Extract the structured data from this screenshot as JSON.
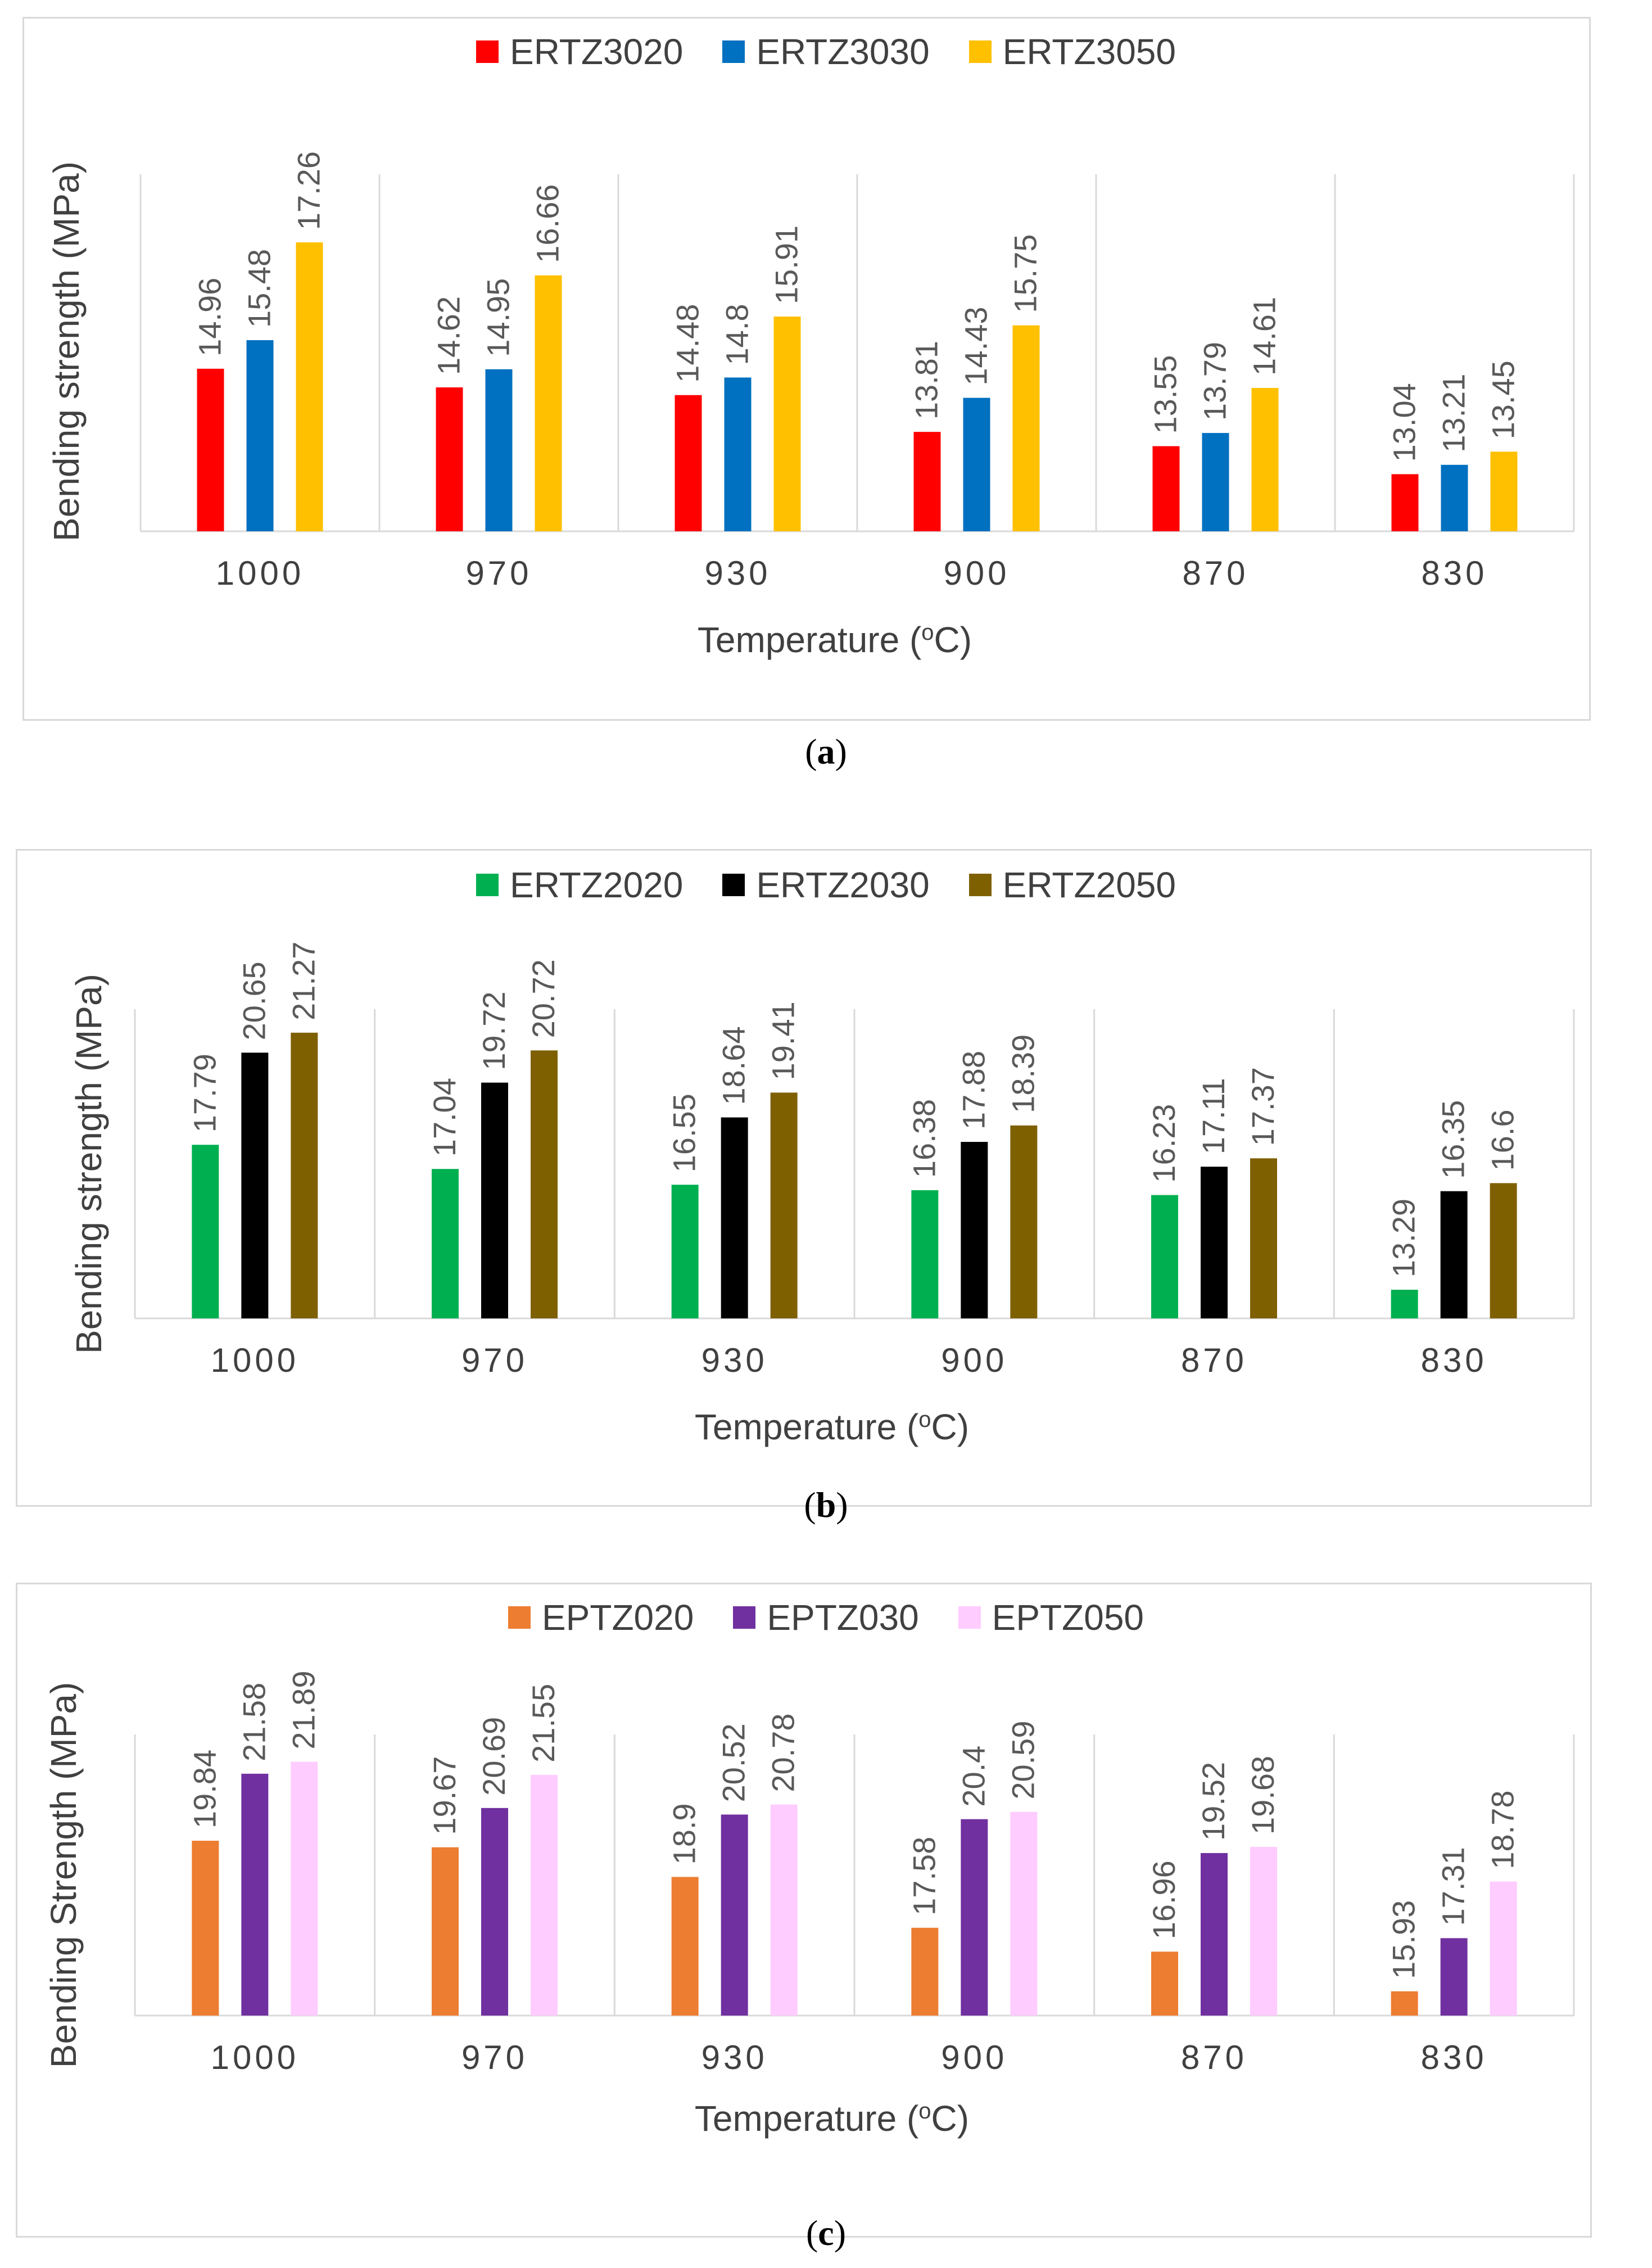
{
  "chart_data": [
    {
      "type": "bar",
      "panel_label": "a",
      "title": "",
      "xlabel": "Temperature (°C)",
      "xlabel_main": "Temperature (",
      "xlabel_sup": "o",
      "xlabel_end": "C)",
      "ylabel": "Bending strength (MPa)",
      "categories": [
        "1000",
        "970",
        "930",
        "900",
        "870",
        "830"
      ],
      "ylim": [
        12,
        18.5
      ],
      "series": [
        {
          "name": "ERTZ3020",
          "color": "#ff0000",
          "values": [
            14.96,
            14.62,
            14.48,
            13.81,
            13.55,
            13.04
          ],
          "labels": [
            "14.96",
            "14.62",
            "14.48",
            "13.81",
            "13.55",
            "13.04"
          ]
        },
        {
          "name": "ERTZ3030",
          "color": "#0070c0",
          "values": [
            15.48,
            14.95,
            14.8,
            14.43,
            13.79,
            13.21
          ],
          "labels": [
            "15.48",
            "14.95",
            "14.8",
            "14.43",
            "13.79",
            "13.21"
          ]
        },
        {
          "name": "ERTZ3050",
          "color": "#ffc000",
          "values": [
            17.26,
            16.66,
            15.91,
            15.75,
            14.61,
            13.45
          ],
          "labels": [
            "17.26",
            "16.66",
            "15.91",
            "15.75",
            "14.61",
            "13.45"
          ]
        }
      ]
    },
    {
      "type": "bar",
      "panel_label": "b",
      "title": "",
      "xlabel": "Temperature (°C)",
      "xlabel_main": "Temperature (",
      "xlabel_sup": "o",
      "xlabel_end": "C)",
      "ylabel": "Bending strength (MPa)",
      "categories": [
        "1000",
        "970",
        "930",
        "900",
        "870",
        "830"
      ],
      "ylim": [
        12.4,
        22.0
      ],
      "series": [
        {
          "name": "ERTZ2020",
          "color": "#00b050",
          "values": [
            17.79,
            17.04,
            16.55,
            16.38,
            16.23,
            13.29
          ],
          "labels": [
            "17.79",
            "17.04",
            "16.55",
            "16.38",
            "16.23",
            "13.29"
          ]
        },
        {
          "name": "ERTZ2030",
          "color": "#000000",
          "values": [
            20.65,
            19.72,
            18.64,
            17.88,
            17.11,
            16.35
          ],
          "labels": [
            "20.65",
            "19.72",
            "18.64",
            "17.88",
            "17.11",
            "16.35"
          ]
        },
        {
          "name": "ERTZ2050",
          "color": "#7f6000",
          "values": [
            21.27,
            20.72,
            19.41,
            18.39,
            17.37,
            16.6
          ],
          "labels": [
            "21.27",
            "20.72",
            "19.41",
            "18.39",
            "17.37",
            "16.6"
          ]
        }
      ]
    },
    {
      "type": "bar",
      "panel_label": "c",
      "title": "",
      "xlabel": "Temperature (°C)",
      "xlabel_main": "Temperature (",
      "xlabel_sup": "o",
      "xlabel_end": "C)",
      "ylabel": "Bending Strength (MPa)",
      "categories": [
        "1000",
        "970",
        "930",
        "900",
        "870",
        "830"
      ],
      "ylim": [
        15.3,
        22.6
      ],
      "series": [
        {
          "name": "EPTZ020",
          "color": "#ed7d31",
          "values": [
            19.84,
            19.67,
            18.9,
            17.58,
            16.96,
            15.93
          ],
          "labels": [
            "19.84",
            "19.67",
            "18.9",
            "17.58",
            "16.96",
            "15.93"
          ]
        },
        {
          "name": "EPTZ030",
          "color": "#7030a0",
          "values": [
            21.58,
            20.69,
            20.52,
            20.4,
            19.52,
            17.31
          ],
          "labels": [
            "21.58",
            "20.69",
            "20.52",
            "20.4",
            "19.52",
            "17.31"
          ]
        },
        {
          "name": "EPTZ050",
          "color": "#ffccff",
          "values": [
            21.89,
            21.55,
            20.78,
            20.59,
            19.68,
            18.78
          ],
          "labels": [
            "21.89",
            "21.55",
            "20.78",
            "20.59",
            "19.68",
            "18.78"
          ]
        }
      ]
    }
  ]
}
